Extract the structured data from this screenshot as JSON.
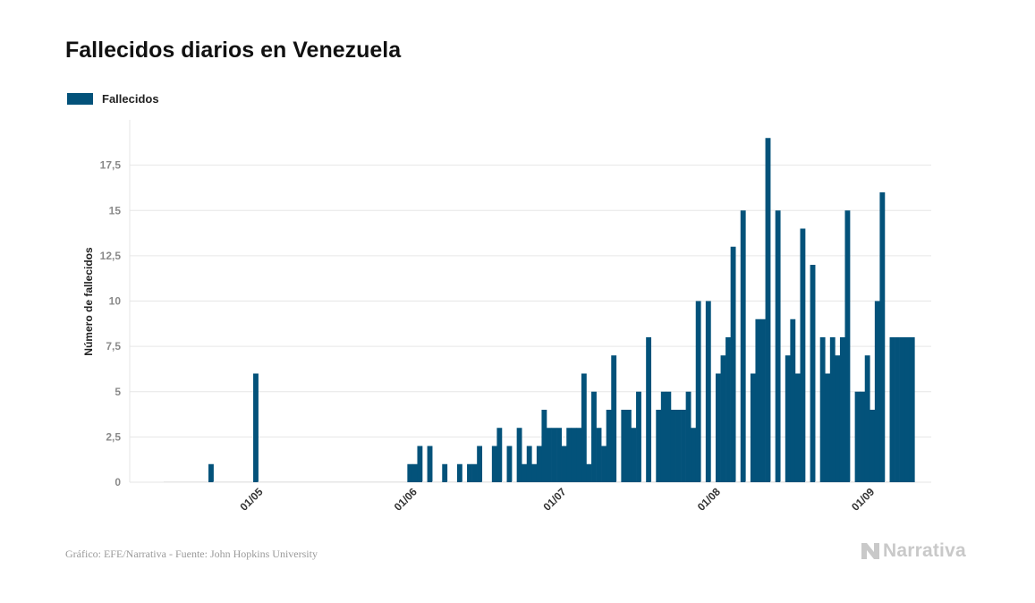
{
  "colors": {
    "bar": "#03527a",
    "grid": "#e6e6e6",
    "tick": "#8a8a8a",
    "brand": "#c9c9c9"
  },
  "footer": {
    "source": "Gráfico: EFE/Narrativa - Fuente: John Hopkins University",
    "brand": "Narrativa"
  },
  "chart_data": {
    "type": "bar",
    "title": "Fallecidos diarios en Venezuela",
    "ylabel": "Número de fallecidos",
    "xlabel": "",
    "ylim": [
      0,
      20
    ],
    "yticks": [
      0,
      2.5,
      5,
      7.5,
      10,
      12.5,
      15,
      17.5
    ],
    "ytick_labels": [
      "0",
      "2,5",
      "5",
      "7,5",
      "10",
      "12,5",
      "15",
      "17,5"
    ],
    "grid": true,
    "legend": "top-left",
    "x_start": "2020-04-13",
    "x_end": "2020-09-13",
    "xticks": [
      {
        "date": "2020-05-01",
        "label": "01/05"
      },
      {
        "date": "2020-06-01",
        "label": "01/06"
      },
      {
        "date": "2020-07-01",
        "label": "01/07"
      },
      {
        "date": "2020-08-01",
        "label": "01/08"
      },
      {
        "date": "2020-09-01",
        "label": "01/09"
      }
    ],
    "series": [
      {
        "name": "Fallecidos",
        "points": [
          {
            "x": "2020-04-13",
            "y": 0
          },
          {
            "x": "2020-04-14",
            "y": 0
          },
          {
            "x": "2020-04-15",
            "y": 0
          },
          {
            "x": "2020-04-16",
            "y": 0
          },
          {
            "x": "2020-04-17",
            "y": 0
          },
          {
            "x": "2020-04-18",
            "y": 0
          },
          {
            "x": "2020-04-19",
            "y": 0
          },
          {
            "x": "2020-04-20",
            "y": 0
          },
          {
            "x": "2020-04-21",
            "y": 0
          },
          {
            "x": "2020-04-22",
            "y": 1
          },
          {
            "x": "2020-04-23",
            "y": 0
          },
          {
            "x": "2020-04-24",
            "y": 0
          },
          {
            "x": "2020-04-25",
            "y": 0
          },
          {
            "x": "2020-04-26",
            "y": 0
          },
          {
            "x": "2020-04-27",
            "y": 0
          },
          {
            "x": "2020-04-28",
            "y": 0
          },
          {
            "x": "2020-04-29",
            "y": 0
          },
          {
            "x": "2020-04-30",
            "y": 0
          },
          {
            "x": "2020-05-01",
            "y": 6
          },
          {
            "x": "2020-05-02",
            "y": 0
          },
          {
            "x": "2020-05-03",
            "y": 0
          },
          {
            "x": "2020-05-04",
            "y": 0
          },
          {
            "x": "2020-05-05",
            "y": 0
          },
          {
            "x": "2020-05-06",
            "y": 0
          },
          {
            "x": "2020-05-07",
            "y": 0
          },
          {
            "x": "2020-05-08",
            "y": 0
          },
          {
            "x": "2020-05-09",
            "y": 0
          },
          {
            "x": "2020-05-10",
            "y": 0
          },
          {
            "x": "2020-05-11",
            "y": 0
          },
          {
            "x": "2020-05-12",
            "y": 0
          },
          {
            "x": "2020-05-13",
            "y": 0
          },
          {
            "x": "2020-05-14",
            "y": 0
          },
          {
            "x": "2020-05-15",
            "y": 0
          },
          {
            "x": "2020-05-16",
            "y": 0
          },
          {
            "x": "2020-05-17",
            "y": 0
          },
          {
            "x": "2020-05-18",
            "y": 0
          },
          {
            "x": "2020-05-19",
            "y": 0
          },
          {
            "x": "2020-05-20",
            "y": 0
          },
          {
            "x": "2020-05-21",
            "y": 0
          },
          {
            "x": "2020-05-22",
            "y": 0
          },
          {
            "x": "2020-05-23",
            "y": 0
          },
          {
            "x": "2020-05-24",
            "y": 0
          },
          {
            "x": "2020-05-25",
            "y": 0
          },
          {
            "x": "2020-05-26",
            "y": 0
          },
          {
            "x": "2020-05-27",
            "y": 0
          },
          {
            "x": "2020-05-28",
            "y": 0
          },
          {
            "x": "2020-05-29",
            "y": 0
          },
          {
            "x": "2020-05-30",
            "y": 0
          },
          {
            "x": "2020-05-31",
            "y": 0
          },
          {
            "x": "2020-06-01",
            "y": 1
          },
          {
            "x": "2020-06-02",
            "y": 1
          },
          {
            "x": "2020-06-03",
            "y": 2
          },
          {
            "x": "2020-06-04",
            "y": 0
          },
          {
            "x": "2020-06-05",
            "y": 2
          },
          {
            "x": "2020-06-06",
            "y": 0
          },
          {
            "x": "2020-06-07",
            "y": 0
          },
          {
            "x": "2020-06-08",
            "y": 1
          },
          {
            "x": "2020-06-09",
            "y": 0
          },
          {
            "x": "2020-06-10",
            "y": 0
          },
          {
            "x": "2020-06-11",
            "y": 1
          },
          {
            "x": "2020-06-12",
            "y": 0
          },
          {
            "x": "2020-06-13",
            "y": 1
          },
          {
            "x": "2020-06-14",
            "y": 1
          },
          {
            "x": "2020-06-15",
            "y": 2
          },
          {
            "x": "2020-06-16",
            "y": 0
          },
          {
            "x": "2020-06-17",
            "y": 0
          },
          {
            "x": "2020-06-18",
            "y": 2
          },
          {
            "x": "2020-06-19",
            "y": 3
          },
          {
            "x": "2020-06-20",
            "y": 0
          },
          {
            "x": "2020-06-21",
            "y": 2
          },
          {
            "x": "2020-06-22",
            "y": 0
          },
          {
            "x": "2020-06-23",
            "y": 3
          },
          {
            "x": "2020-06-24",
            "y": 1
          },
          {
            "x": "2020-06-25",
            "y": 2
          },
          {
            "x": "2020-06-26",
            "y": 1
          },
          {
            "x": "2020-06-27",
            "y": 2
          },
          {
            "x": "2020-06-28",
            "y": 4
          },
          {
            "x": "2020-06-29",
            "y": 3
          },
          {
            "x": "2020-06-30",
            "y": 3
          },
          {
            "x": "2020-07-01",
            "y": 3
          },
          {
            "x": "2020-07-02",
            "y": 2
          },
          {
            "x": "2020-07-03",
            "y": 3
          },
          {
            "x": "2020-07-04",
            "y": 3
          },
          {
            "x": "2020-07-05",
            "y": 3
          },
          {
            "x": "2020-07-06",
            "y": 6
          },
          {
            "x": "2020-07-07",
            "y": 1
          },
          {
            "x": "2020-07-08",
            "y": 5
          },
          {
            "x": "2020-07-09",
            "y": 3
          },
          {
            "x": "2020-07-10",
            "y": 2
          },
          {
            "x": "2020-07-11",
            "y": 4
          },
          {
            "x": "2020-07-12",
            "y": 7
          },
          {
            "x": "2020-07-13",
            "y": 0
          },
          {
            "x": "2020-07-14",
            "y": 4
          },
          {
            "x": "2020-07-15",
            "y": 4
          },
          {
            "x": "2020-07-16",
            "y": 3
          },
          {
            "x": "2020-07-17",
            "y": 5
          },
          {
            "x": "2020-07-18",
            "y": 0
          },
          {
            "x": "2020-07-19",
            "y": 8
          },
          {
            "x": "2020-07-20",
            "y": 0
          },
          {
            "x": "2020-07-21",
            "y": 4
          },
          {
            "x": "2020-07-22",
            "y": 5
          },
          {
            "x": "2020-07-23",
            "y": 5
          },
          {
            "x": "2020-07-24",
            "y": 4
          },
          {
            "x": "2020-07-25",
            "y": 4
          },
          {
            "x": "2020-07-26",
            "y": 4
          },
          {
            "x": "2020-07-27",
            "y": 5
          },
          {
            "x": "2020-07-28",
            "y": 3
          },
          {
            "x": "2020-07-29",
            "y": 10
          },
          {
            "x": "2020-07-30",
            "y": 0
          },
          {
            "x": "2020-07-31",
            "y": 10
          },
          {
            "x": "2020-08-01",
            "y": 0
          },
          {
            "x": "2020-08-02",
            "y": 6
          },
          {
            "x": "2020-08-03",
            "y": 7
          },
          {
            "x": "2020-08-04",
            "y": 8
          },
          {
            "x": "2020-08-05",
            "y": 13
          },
          {
            "x": "2020-08-06",
            "y": 0
          },
          {
            "x": "2020-08-07",
            "y": 15
          },
          {
            "x": "2020-08-08",
            "y": 0
          },
          {
            "x": "2020-08-09",
            "y": 6
          },
          {
            "x": "2020-08-10",
            "y": 9
          },
          {
            "x": "2020-08-11",
            "y": 9
          },
          {
            "x": "2020-08-12",
            "y": 19
          },
          {
            "x": "2020-08-13",
            "y": 0
          },
          {
            "x": "2020-08-14",
            "y": 15
          },
          {
            "x": "2020-08-15",
            "y": 0
          },
          {
            "x": "2020-08-16",
            "y": 7
          },
          {
            "x": "2020-08-17",
            "y": 9
          },
          {
            "x": "2020-08-18",
            "y": 6
          },
          {
            "x": "2020-08-19",
            "y": 14
          },
          {
            "x": "2020-08-20",
            "y": 0
          },
          {
            "x": "2020-08-21",
            "y": 12
          },
          {
            "x": "2020-08-22",
            "y": 0
          },
          {
            "x": "2020-08-23",
            "y": 8
          },
          {
            "x": "2020-08-24",
            "y": 6
          },
          {
            "x": "2020-08-25",
            "y": 8
          },
          {
            "x": "2020-08-26",
            "y": 7
          },
          {
            "x": "2020-08-27",
            "y": 8
          },
          {
            "x": "2020-08-28",
            "y": 15
          },
          {
            "x": "2020-08-29",
            "y": 0
          },
          {
            "x": "2020-08-30",
            "y": 5
          },
          {
            "x": "2020-08-31",
            "y": 5
          },
          {
            "x": "2020-09-01",
            "y": 7
          },
          {
            "x": "2020-09-02",
            "y": 4
          },
          {
            "x": "2020-09-03",
            "y": 10
          },
          {
            "x": "2020-09-04",
            "y": 16
          },
          {
            "x": "2020-09-05",
            "y": 0
          },
          {
            "x": "2020-09-06",
            "y": 8
          },
          {
            "x": "2020-09-07",
            "y": 8
          },
          {
            "x": "2020-09-08",
            "y": 8
          },
          {
            "x": "2020-09-09",
            "y": 8
          },
          {
            "x": "2020-09-10",
            "y": 8
          }
        ]
      }
    ]
  }
}
